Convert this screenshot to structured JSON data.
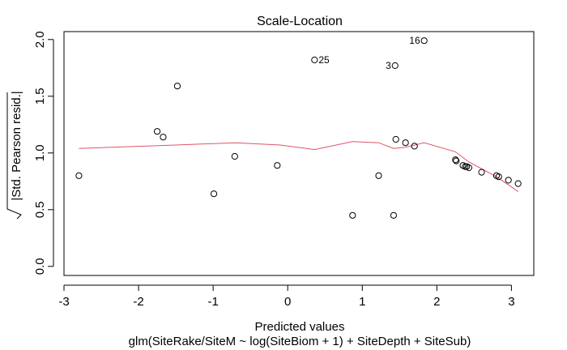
{
  "chart_data": {
    "type": "scatter",
    "title": "Scale-Location",
    "xlabel": "Predicted values",
    "ylabel_radicand": "|Std. Pearson resid.|",
    "subtitle": "glm(SiteRake/SiteM ~ log(SiteBiom + 1) + SiteDepth + SiteSub)",
    "xlim": [
      -3.0,
      3.3
    ],
    "ylim": [
      -0.08,
      2.07
    ],
    "x_ticks": [
      -3,
      -2,
      -1,
      0,
      1,
      2,
      3
    ],
    "x_tick_labels": [
      "-3",
      "-2",
      "-1",
      "0",
      "1",
      "2",
      "3"
    ],
    "y_ticks": [
      0.0,
      0.5,
      1.0,
      1.5,
      2.0
    ],
    "y_tick_labels": [
      "0.0",
      "0.5",
      "1.0",
      "1.5",
      "2.0"
    ],
    "grid": false,
    "points": [
      {
        "x": -2.8,
        "y": 0.8
      },
      {
        "x": -1.75,
        "y": 1.19
      },
      {
        "x": -1.67,
        "y": 1.14
      },
      {
        "x": -1.48,
        "y": 1.59
      },
      {
        "x": -0.99,
        "y": 0.64
      },
      {
        "x": -0.71,
        "y": 0.97
      },
      {
        "x": -0.14,
        "y": 0.89
      },
      {
        "x": 0.36,
        "y": 1.82
      },
      {
        "x": 0.87,
        "y": 0.45
      },
      {
        "x": 1.22,
        "y": 0.8
      },
      {
        "x": 1.42,
        "y": 0.45
      },
      {
        "x": 1.44,
        "y": 1.77
      },
      {
        "x": 1.45,
        "y": 1.12
      },
      {
        "x": 1.58,
        "y": 1.09
      },
      {
        "x": 1.7,
        "y": 1.06
      },
      {
        "x": 1.83,
        "y": 1.99
      },
      {
        "x": 2.25,
        "y": 0.94
      },
      {
        "x": 2.26,
        "y": 0.93
      },
      {
        "x": 2.35,
        "y": 0.89
      },
      {
        "x": 2.38,
        "y": 0.88
      },
      {
        "x": 2.4,
        "y": 0.88
      },
      {
        "x": 2.43,
        "y": 0.87
      },
      {
        "x": 2.6,
        "y": 0.83
      },
      {
        "x": 2.8,
        "y": 0.8
      },
      {
        "x": 2.83,
        "y": 0.79
      },
      {
        "x": 2.96,
        "y": 0.76
      },
      {
        "x": 3.09,
        "y": 0.73
      }
    ],
    "point_labels": [
      {
        "text": "25",
        "x": 0.36,
        "y": 1.82,
        "side": "right"
      },
      {
        "text": "3",
        "x": 1.44,
        "y": 1.77,
        "side": "left"
      },
      {
        "text": "16",
        "x": 1.83,
        "y": 1.99,
        "side": "left"
      }
    ],
    "smooth_line": {
      "color": "#DF536B",
      "x": [
        -2.8,
        -1.5,
        -0.7,
        -0.1,
        0.36,
        0.87,
        1.22,
        1.42,
        1.58,
        1.83,
        2.25,
        2.43,
        2.8,
        3.09
      ],
      "y": [
        1.04,
        1.07,
        1.09,
        1.07,
        1.03,
        1.1,
        1.09,
        1.04,
        1.05,
        1.09,
        1.01,
        0.92,
        0.79,
        0.66
      ]
    },
    "point_color": "#000000"
  }
}
